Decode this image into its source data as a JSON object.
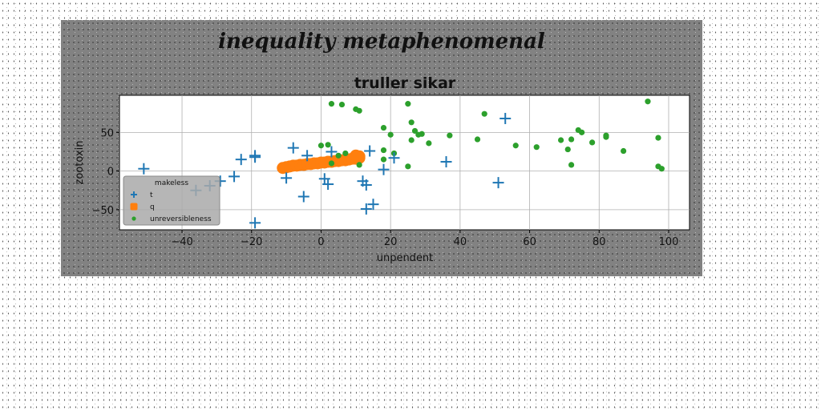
{
  "chart_data": {
    "type": "scatter",
    "suptitle": "inequality metaphenomenal",
    "title": "truller sikar",
    "xlabel": "unpendent",
    "ylabel": "zootoxin",
    "xlim": [
      -58,
      106
    ],
    "ylim": [
      -76,
      98
    ],
    "xticks": [
      -40,
      -20,
      0,
      20,
      40,
      60,
      80,
      100
    ],
    "yticks": [
      -50,
      0,
      50
    ],
    "grid": true,
    "legend": {
      "title": "makeless",
      "placement": "lower-left"
    },
    "series": [
      {
        "name": "t",
        "marker": "plus",
        "color": "#1f77b4",
        "points": [
          [
            -51,
            3
          ],
          [
            -36,
            -25
          ],
          [
            -32,
            -19
          ],
          [
            -29,
            -13
          ],
          [
            -25,
            -7
          ],
          [
            -23,
            15
          ],
          [
            -19,
            18
          ],
          [
            -19,
            20
          ],
          [
            -19,
            -67
          ],
          [
            -10,
            -9
          ],
          [
            -8,
            30
          ],
          [
            -5,
            -33
          ],
          [
            -4,
            20
          ],
          [
            1,
            -10
          ],
          [
            2,
            -17
          ],
          [
            3,
            25
          ],
          [
            12,
            -13
          ],
          [
            13,
            -18
          ],
          [
            13,
            -49
          ],
          [
            14,
            26
          ],
          [
            15,
            -43
          ],
          [
            18,
            2
          ],
          [
            21,
            17
          ],
          [
            36,
            12
          ],
          [
            51,
            -15
          ],
          [
            53,
            68
          ]
        ]
      },
      {
        "name": "q",
        "marker": "circle",
        "color": "#ff7f0e",
        "points": [
          [
            -11,
            4
          ],
          [
            -10,
            5
          ],
          [
            -9,
            6
          ],
          [
            -8,
            7
          ],
          [
            -7,
            7
          ],
          [
            -6,
            8
          ],
          [
            -5,
            8
          ],
          [
            -4,
            9
          ],
          [
            -3,
            9
          ],
          [
            -2,
            10
          ],
          [
            -1,
            10
          ],
          [
            0,
            11
          ],
          [
            1,
            11
          ],
          [
            2,
            12
          ],
          [
            3,
            12
          ],
          [
            4,
            13
          ],
          [
            5,
            13
          ],
          [
            6,
            14
          ],
          [
            7,
            14
          ],
          [
            8,
            15
          ],
          [
            9,
            16
          ],
          [
            10,
            16
          ],
          [
            11,
            17
          ],
          [
            11,
            19
          ],
          [
            10,
            20
          ]
        ]
      },
      {
        "name": "unreversibleness",
        "marker": "circle",
        "color": "#2ca02c",
        "points": [
          [
            0,
            33
          ],
          [
            2,
            34
          ],
          [
            3,
            10
          ],
          [
            3,
            87
          ],
          [
            5,
            20
          ],
          [
            6,
            86
          ],
          [
            7,
            23
          ],
          [
            10,
            80
          ],
          [
            11,
            78
          ],
          [
            11,
            8
          ],
          [
            18,
            27
          ],
          [
            18,
            56
          ],
          [
            18,
            15
          ],
          [
            20,
            47
          ],
          [
            21,
            23
          ],
          [
            25,
            87
          ],
          [
            25,
            6
          ],
          [
            26,
            63
          ],
          [
            26,
            40
          ],
          [
            27,
            52
          ],
          [
            28,
            47
          ],
          [
            29,
            48
          ],
          [
            31,
            36
          ],
          [
            37,
            46
          ],
          [
            45,
            41
          ],
          [
            47,
            74
          ],
          [
            56,
            33
          ],
          [
            62,
            31
          ],
          [
            69,
            40
          ],
          [
            71,
            28
          ],
          [
            72,
            8
          ],
          [
            72,
            41
          ],
          [
            74,
            53
          ],
          [
            75,
            50
          ],
          [
            78,
            37
          ],
          [
            82,
            44
          ],
          [
            82,
            46
          ],
          [
            87,
            26
          ],
          [
            94,
            90
          ],
          [
            97,
            43
          ],
          [
            97,
            6
          ],
          [
            98,
            3
          ]
        ]
      }
    ]
  }
}
